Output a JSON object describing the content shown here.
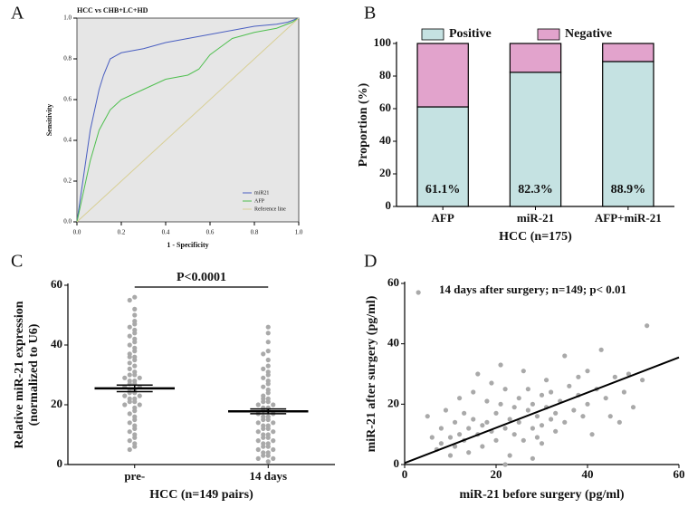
{
  "chart_data": [
    {
      "type": "line",
      "panel_label": "A",
      "title": "HCC vs CHB+LC+HD",
      "xlabel": "1 - Specificity",
      "ylabel": "Sensitivity",
      "xlim": [
        0,
        1
      ],
      "ylim": [
        0,
        1
      ],
      "xticks": [
        {
          "value": 0,
          "label": "0.0"
        },
        0.2,
        0.4,
        0.6,
        0.8,
        {
          "value": 1,
          "label": "1.0"
        }
      ],
      "yticks": [
        {
          "value": 0,
          "label": "0.0"
        },
        0.2,
        0.4,
        0.6,
        0.8,
        {
          "value": 1,
          "label": "1.0"
        }
      ],
      "legend": "lower right",
      "background": "#e6e6e6",
      "series": [
        {
          "name": "miR21",
          "color": "#4a5fc1",
          "x": [
            0,
            0.02,
            0.04,
            0.06,
            0.08,
            0.1,
            0.12,
            0.15,
            0.2,
            0.3,
            0.4,
            0.5,
            0.6,
            0.7,
            0.8,
            0.9,
            0.95,
            1
          ],
          "values": [
            0,
            0.15,
            0.3,
            0.45,
            0.55,
            0.65,
            0.72,
            0.8,
            0.83,
            0.85,
            0.88,
            0.9,
            0.92,
            0.94,
            0.96,
            0.97,
            0.98,
            1
          ]
        },
        {
          "name": "AFP",
          "color": "#4fbf4f",
          "x": [
            0,
            0.03,
            0.06,
            0.1,
            0.15,
            0.2,
            0.3,
            0.4,
            0.5,
            0.55,
            0.6,
            0.65,
            0.7,
            0.8,
            0.9,
            0.97,
            1
          ],
          "values": [
            0,
            0.15,
            0.3,
            0.45,
            0.55,
            0.6,
            0.65,
            0.7,
            0.72,
            0.75,
            0.82,
            0.86,
            0.9,
            0.93,
            0.95,
            0.98,
            1
          ]
        },
        {
          "name": "Reference line",
          "color": "#d8cf95",
          "x": [
            0,
            1
          ],
          "values": [
            0,
            1
          ]
        }
      ]
    },
    {
      "type": "bar",
      "panel_label": "B",
      "xlabel": "HCC (n=175)",
      "ylabel": "Proportion (%)",
      "stacked": true,
      "legend": "top",
      "categories": [
        "AFP",
        "miR-21",
        "AFP+miR-21"
      ],
      "ylim": [
        0,
        100
      ],
      "yticks": [
        0,
        20,
        40,
        60,
        80,
        100
      ],
      "series": [
        {
          "name": "Positive",
          "color": "#c5e2e2",
          "values": [
            61.1,
            82.3,
            88.9
          ],
          "value_labels": [
            "61.1%",
            "82.3%",
            "88.9%"
          ]
        },
        {
          "name": "Negative",
          "color": "#e2a3cc",
          "values": [
            38.9,
            17.7,
            11.1
          ]
        }
      ]
    },
    {
      "type": "dot",
      "panel_label": "C",
      "xlabel": "HCC (n=149 pairs)",
      "ylabel": [
        "Relative miR-21 expression",
        "(normalized to U6)"
      ],
      "annotation": "P<0.0001",
      "categories": [
        "pre-",
        "14 days"
      ],
      "ylim": [
        0,
        60
      ],
      "yticks": [
        0,
        20,
        40,
        60
      ],
      "color": "#a9a9a9",
      "means": [
        25.5,
        17.8
      ],
      "sems": [
        1.1,
        0.8
      ],
      "groups": [
        [
          56,
          55,
          52,
          50,
          48,
          47,
          46,
          45,
          44,
          43,
          42,
          41,
          40,
          39,
          38,
          37,
          36,
          36,
          35,
          34,
          33,
          32,
          31,
          30,
          30,
          29,
          29,
          28,
          28,
          27,
          27,
          26,
          26,
          25,
          25,
          24,
          24,
          23,
          23,
          22,
          22,
          21,
          21,
          20,
          20,
          19,
          18,
          17,
          16,
          15,
          14,
          13,
          12,
          11,
          10,
          9,
          8,
          7,
          6,
          5
        ],
        [
          46,
          44,
          41,
          38,
          37,
          35,
          33,
          32,
          31,
          30,
          29,
          28,
          27,
          26,
          25,
          24,
          23,
          22,
          22,
          21,
          21,
          20,
          20,
          19,
          19,
          18,
          18,
          17,
          17,
          16,
          16,
          15,
          15,
          14,
          14,
          13,
          13,
          12,
          12,
          11,
          11,
          10,
          10,
          9,
          9,
          8,
          8,
          7,
          7,
          6,
          6,
          5,
          5,
          4,
          4,
          3,
          3,
          2,
          2,
          1
        ]
      ]
    },
    {
      "type": "scatter",
      "panel_label": "D",
      "xlabel": "miR-21 before surgery (pg/ml)",
      "ylabel": "miR-21 after surgery (pg/ml)",
      "annotation": "14 days after surgery; n=149; p< 0.01",
      "color": "#a9a9a9",
      "xlim": [
        0,
        60
      ],
      "ylim": [
        0,
        60
      ],
      "xticks": [
        0,
        20,
        40,
        60
      ],
      "yticks": [
        0,
        20,
        40,
        60
      ],
      "x": [
        3,
        5,
        6,
        7,
        8,
        8,
        9,
        10,
        10,
        11,
        11,
        12,
        12,
        13,
        13,
        14,
        14,
        15,
        15,
        16,
        16,
        17,
        17,
        18,
        18,
        19,
        19,
        20,
        20,
        21,
        21,
        22,
        22,
        23,
        23,
        24,
        24,
        25,
        25,
        26,
        26,
        27,
        27,
        28,
        28,
        29,
        29,
        30,
        30,
        31,
        31,
        32,
        32,
        33,
        33,
        34,
        35,
        35,
        36,
        37,
        38,
        38,
        39,
        40,
        40,
        41,
        42,
        43,
        44,
        45,
        46,
        47,
        48,
        49,
        50,
        52,
        53,
        30,
        28,
        22
      ],
      "values": [
        57,
        16,
        9,
        5,
        12,
        7,
        18,
        9,
        3,
        14,
        6,
        10,
        22,
        17,
        8,
        12,
        4,
        24,
        15,
        10,
        30,
        13,
        6,
        21,
        14,
        27,
        11,
        17,
        8,
        33,
        20,
        12,
        25,
        15,
        3,
        19,
        10,
        22,
        14,
        31,
        8,
        18,
        25,
        12,
        20,
        16,
        9,
        23,
        13,
        19,
        28,
        15,
        24,
        17,
        11,
        21,
        36,
        14,
        26,
        18,
        23,
        29,
        16,
        20,
        31,
        10,
        25,
        38,
        22,
        16,
        29,
        14,
        24,
        30,
        19,
        28,
        46,
        7,
        2,
        0
      ],
      "trendline": {
        "x": [
          0,
          60
        ],
        "values": [
          0.5,
          35.5
        ]
      }
    }
  ]
}
